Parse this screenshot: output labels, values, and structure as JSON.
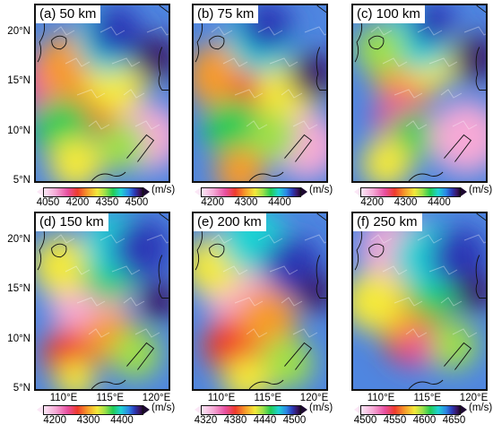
{
  "figure": {
    "panels": [
      {
        "title": "(a) 50 km",
        "colorbar": {
          "ticks": [
            "4050",
            "4200",
            "4350",
            "4500"
          ],
          "unit": "(m/s)"
        }
      },
      {
        "title": "(b) 75 km",
        "colorbar": {
          "ticks": [
            "4200",
            "4300",
            "4400"
          ],
          "unit": "(m/s)"
        }
      },
      {
        "title": "(c) 100 km",
        "colorbar": {
          "ticks": [
            "4200",
            "4300",
            "4400"
          ],
          "unit": "(m/s)"
        }
      },
      {
        "title": "(d) 150 km",
        "colorbar": {
          "ticks": [
            "4200",
            "4300",
            "4400"
          ],
          "unit": "(m/s)"
        }
      },
      {
        "title": "(e) 200 km",
        "colorbar": {
          "ticks": [
            "4320",
            "4380",
            "4440",
            "4500"
          ],
          "unit": "(m/s)"
        }
      },
      {
        "title": "(f) 250 km",
        "colorbar": {
          "ticks": [
            "4500",
            "4550",
            "4600",
            "4650"
          ],
          "unit": "(m/s)"
        }
      }
    ],
    "y_axis_labels": [
      "20°N",
      "15°N",
      "10°N",
      "5°N"
    ],
    "x_axis_labels": [
      "110°E",
      "115°E",
      "120°E"
    ]
  }
}
